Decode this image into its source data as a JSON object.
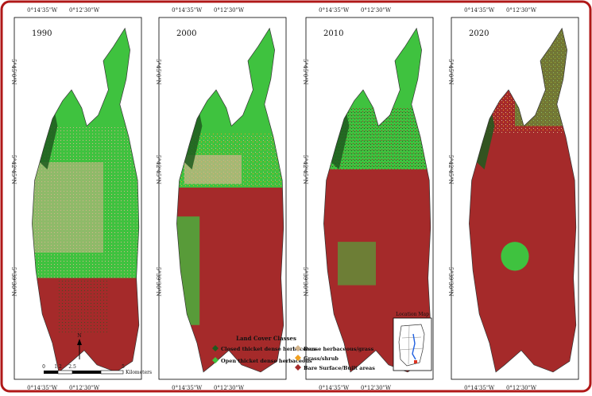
{
  "panels": [
    {
      "year": "1990",
      "top_coords": [
        "0°14'35\"W",
        "0°12'30\"W"
      ],
      "bottom_coords": [
        "0°14'35\"W",
        "0°12'30\"W"
      ],
      "side_coords": [
        "5°45'0\"N",
        "5°42'45\"N",
        "5°39'30\"N"
      ]
    },
    {
      "year": "2000",
      "top_coords": [
        "0°14'35\"W",
        "0°12'30\"W"
      ],
      "bottom_coords": [
        "0°14'35\"W",
        "0°12'30\"W"
      ],
      "side_coords": [
        "5°45'0\"N",
        "5°42'45\"N",
        "5°39'30\"N"
      ]
    },
    {
      "year": "2010",
      "top_coords": [
        "0°14'35\"W",
        "0°12'30\"W"
      ],
      "bottom_coords": [
        "0°14'35\"W",
        "0°12'30\"W"
      ],
      "side_coords": [
        "5°45'0\"N",
        "5°42'45\"N",
        "5°39'30\"N"
      ]
    },
    {
      "year": "2020",
      "top_coords": [
        "0°14'35\"W",
        "0°12'30\"W"
      ],
      "bottom_coords": [
        "0°14'35\"W",
        "0°12'30\"W"
      ],
      "side_coords": [
        "5°45'0\"N",
        "5°42'45\"N",
        "5°39'30\"N"
      ]
    }
  ],
  "legend": {
    "title": "Land Cover Classes",
    "items": [
      {
        "label": "Closed thicket dense herbaceous",
        "color": "#1e5a1e"
      },
      {
        "label": "Open thicket dense herbaceous",
        "color": "#3fc23f"
      },
      {
        "label": "Dense herbaceous/grass",
        "color": "#d2b48c"
      },
      {
        "label": "Grass/shrub",
        "color": "#f0a020"
      },
      {
        "label": "Bare Surface/Built areas",
        "color": "#a52a2a"
      }
    ]
  },
  "scalebar": {
    "ticks": [
      "0",
      "1.2",
      "2.5",
      "5"
    ],
    "unit": "Kilometers"
  },
  "north_arrow": "N",
  "location_map": {
    "title": "Location Map"
  },
  "frame_color": "#b01818"
}
